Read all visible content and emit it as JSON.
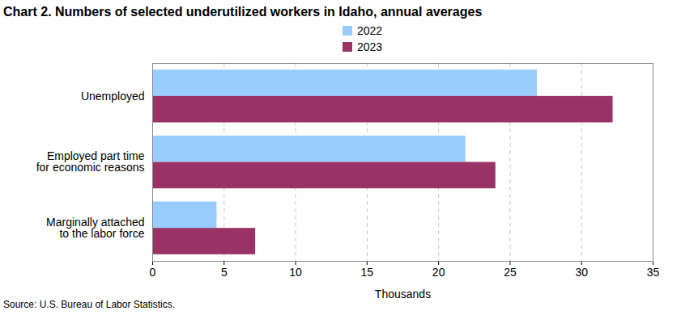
{
  "chart_data": {
    "type": "bar",
    "orientation": "horizontal",
    "title": "Chart 2. Numbers of selected underutilized workers in Idaho, annual averages",
    "categories": [
      "Unemployed",
      "Employed part time\nfor economic reasons",
      "Marginally attached\nto the labor force"
    ],
    "series": [
      {
        "name": "2022",
        "color": "#99ccff",
        "values": [
          26.9,
          21.9,
          4.5
        ]
      },
      {
        "name": "2023",
        "color": "#993366",
        "values": [
          32.2,
          24.0,
          7.2
        ]
      }
    ],
    "xlabel": "Thousands",
    "xlim": [
      0,
      35
    ],
    "xticks": [
      0,
      5,
      10,
      15,
      20,
      25,
      30,
      35
    ],
    "grid": true,
    "legend": "top",
    "source": "Source: U.S. Bureau of Labor Statistics."
  }
}
